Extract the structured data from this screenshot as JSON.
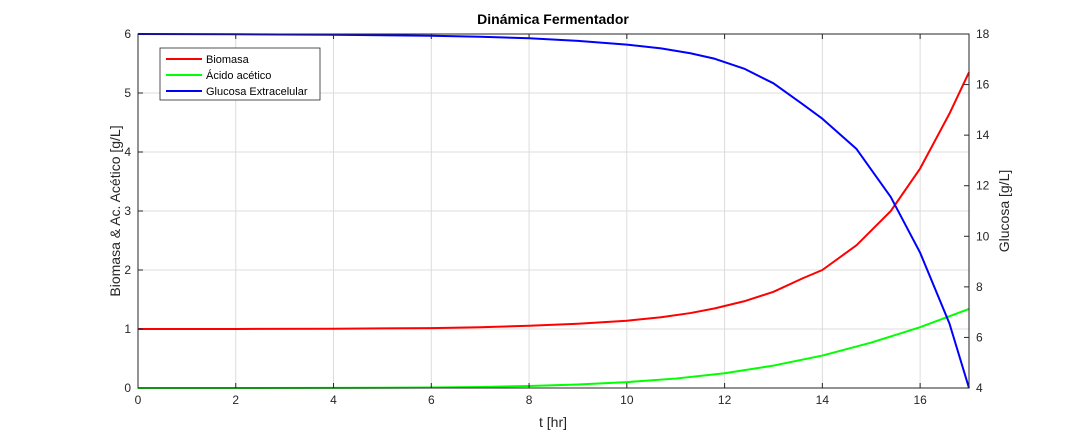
{
  "chart_data": {
    "type": "line",
    "title": "Dinámica Fermentador",
    "xlabel": "t [hr]",
    "ylabel_left": "Biomasa & Ac. Acético [g/L]",
    "ylabel_right": "Glucosa [g/L]",
    "xlim": [
      0,
      17
    ],
    "ylim_left": [
      0,
      6
    ],
    "ylim_right": [
      4,
      18
    ],
    "xticks": [
      0,
      2,
      4,
      6,
      8,
      10,
      12,
      14,
      16
    ],
    "yticks_left": [
      0,
      1,
      2,
      3,
      4,
      5,
      6
    ],
    "yticks_right": [
      4,
      6,
      8,
      10,
      12,
      14,
      16,
      18
    ],
    "grid": true,
    "legend_position": "top-left",
    "series": [
      {
        "name": "Biomasa",
        "axis": "left",
        "color": "#ff0000",
        "x": [
          0,
          2,
          4,
          6,
          7,
          8,
          9,
          10,
          10.7,
          11.3,
          11.8,
          12.4,
          13,
          13.6,
          14,
          14.7,
          15.4,
          16,
          16.6,
          17
        ],
        "y": [
          1.0,
          1.001,
          1.005,
          1.015,
          1.03,
          1.055,
          1.09,
          1.14,
          1.2,
          1.27,
          1.35,
          1.47,
          1.63,
          1.86,
          2.0,
          2.42,
          3.0,
          3.72,
          4.65,
          5.35
        ]
      },
      {
        "name": "Ácido acético",
        "axis": "left",
        "color": "#00ff00",
        "x": [
          0,
          2,
          4,
          6,
          7,
          8,
          9,
          10,
          11,
          12,
          13,
          14,
          15,
          16,
          17
        ],
        "y": [
          0.0,
          0.0,
          0.002,
          0.008,
          0.018,
          0.035,
          0.06,
          0.1,
          0.16,
          0.25,
          0.38,
          0.55,
          0.77,
          1.03,
          1.34
        ]
      },
      {
        "name": "Glucosa Extracelular",
        "axis": "right",
        "color": "#0000ff",
        "x": [
          0,
          2,
          4,
          6,
          7,
          8,
          9,
          10,
          10.7,
          11.3,
          11.8,
          12.4,
          13,
          13.6,
          14,
          14.7,
          15.4,
          16,
          16.6,
          17
        ],
        "y": [
          18.0,
          17.99,
          17.97,
          17.93,
          17.89,
          17.83,
          17.73,
          17.58,
          17.43,
          17.24,
          17.02,
          16.63,
          16.05,
          15.22,
          14.65,
          13.45,
          11.55,
          9.35,
          6.55,
          4.0
        ]
      }
    ]
  }
}
